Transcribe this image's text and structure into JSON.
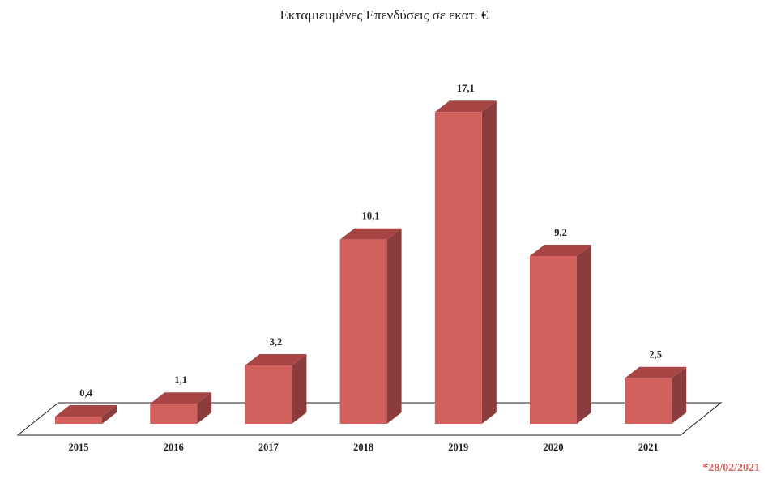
{
  "chart_data": {
    "type": "bar3d",
    "title": "Εκταμιευμένες Επενδύσεις σε εκατ. €",
    "categories": [
      "2015",
      "2016",
      "2017",
      "2018",
      "2019",
      "2020",
      "2021"
    ],
    "values": [
      0.4,
      1.1,
      3.2,
      10.1,
      17.1,
      9.2,
      2.5
    ],
    "value_labels": [
      "0,4",
      "1,1",
      "3,2",
      "10,1",
      "17,1",
      "9,2",
      "2,5"
    ],
    "color": "#d2605c",
    "annotation": "*28/02/2021"
  }
}
